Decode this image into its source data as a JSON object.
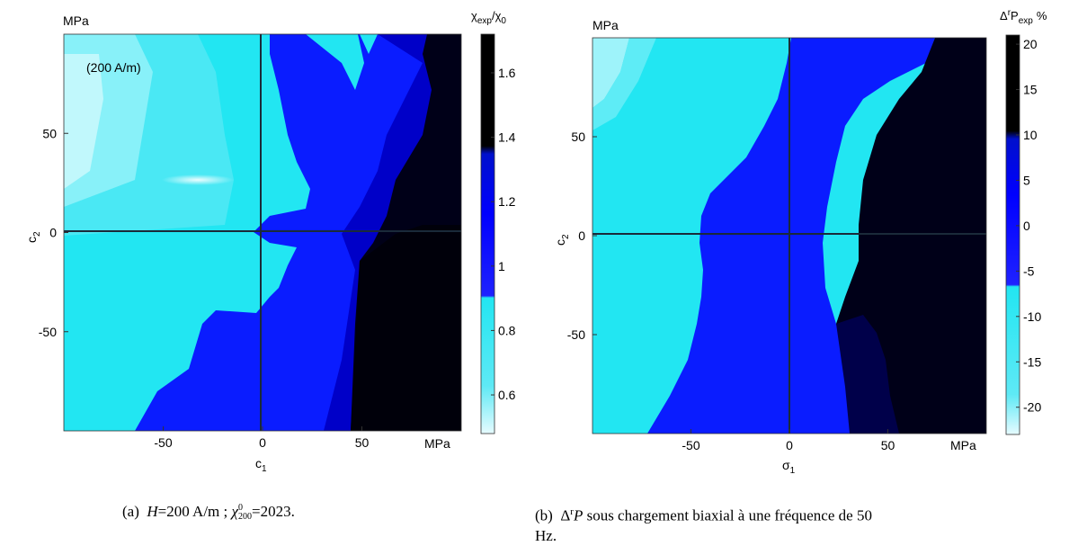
{
  "chart_data": [
    {
      "type": "heatmap",
      "xlabel": "c1",
      "ylabel": "c2",
      "x_unit": "MPa",
      "y_unit": "MPa",
      "xlim": [
        -100,
        100
      ],
      "ylim": [
        -100,
        100
      ],
      "x_ticks": [
        -50,
        0,
        50
      ],
      "y_ticks": [
        50,
        0,
        -50
      ],
      "annotation": "(200 A/m)",
      "colorbar": {
        "label": "χexp/χ0",
        "range": [
          0.48,
          1.72
        ],
        "ticks": [
          1.6,
          1.4,
          1.2,
          1,
          0.8,
          0.6
        ],
        "colors": [
          "#e6fbff",
          "#22e6f2",
          "#0000ff",
          "#000000"
        ]
      },
      "caption": "(a) H=200 A/m ; χ0200=2023."
    },
    {
      "type": "heatmap",
      "xlabel": "σ1",
      "ylabel": "c2",
      "x_unit": "MPa",
      "y_unit": "MPa",
      "xlim": [
        -100,
        100
      ],
      "ylim": [
        -100,
        100
      ],
      "x_ticks": [
        -50,
        0,
        50
      ],
      "y_ticks": [
        50,
        0,
        -50
      ],
      "colorbar": {
        "label": "ΔrPexp %",
        "range": [
          -23,
          21
        ],
        "ticks": [
          20,
          15,
          10,
          5,
          0,
          -5,
          -10,
          -15,
          -20
        ],
        "colors": [
          "#e6fbff",
          "#22e6f2",
          "#0000ff",
          "#000000"
        ]
      },
      "caption": "(b) ΔrP sous chargement biaxial à une fréquence de 50 Hz."
    }
  ],
  "text": {
    "a_unit_y": "MPa",
    "a_unit_x": "MPa",
    "a_annotation": "(200 A/m)",
    "a_cb_label_main": "χ",
    "a_cb_label_sub": "exp",
    "a_cb_label_mid": "/χ",
    "a_cb_label_sub2": "0",
    "a_xlabel_main": "c",
    "a_xlabel_sub": "1",
    "a_ylabel_main": "c",
    "a_ylabel_sub": "2",
    "b_unit_y": "MPa",
    "b_unit_x": "MPa",
    "b_cb_label_delta": "Δ",
    "b_cb_label_sup": "r",
    "b_cb_label_p": "P",
    "b_cb_label_sub": "exp",
    "b_cb_label_pct": "%",
    "b_xlabel_main": "σ",
    "b_xlabel_sub": "1",
    "b_ylabel_main": "c",
    "b_ylabel_sub": "2",
    "caption_a_pre": "(a)  ",
    "caption_a_H": "H",
    "caption_a_eq1": "=200 A/m ; ",
    "caption_a_chi": "χ",
    "caption_a_sub": "200",
    "caption_a_sup": "0",
    "caption_a_eq2": "=2023.",
    "caption_b_pre": "(b)  ",
    "caption_b_delta": "Δ",
    "caption_b_sup": "r",
    "caption_b_P": "P",
    "caption_b_rest_line1": " sous chargement biaxial à une fréquence de 50",
    "caption_b_line2": "Hz."
  }
}
